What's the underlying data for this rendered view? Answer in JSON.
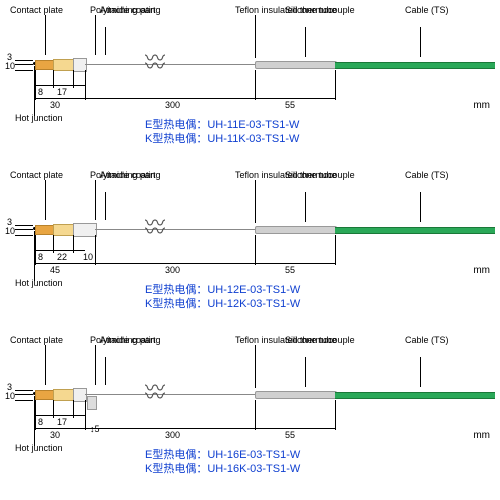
{
  "labels": {
    "contact_plate": "Contact plate",
    "polyimide": "Polyimide coating",
    "attaching": "Attaching part",
    "teflon": "Teflon insulated thermocouple",
    "silicone": "Silicone tube",
    "cable": "Cable (TS)",
    "hot_junction": "Hot junction",
    "unit": "mm"
  },
  "colors": {
    "contact_plate": "#e8a542",
    "polyimide": "#f5d890",
    "cable": "#2aa858",
    "model_text": "#1040d0"
  },
  "diagrams": [
    {
      "dims": {
        "v1": "3",
        "v2": "10",
        "h1": "8",
        "h2": "17",
        "h3": "30",
        "seg1": "300",
        "seg2": "55",
        "extra": null
      },
      "model_e": "E型热电偶：UH-11E-03-TS1-W",
      "model_k": "K型热电偶：UH-11K-03-TS1-W",
      "attach_w": 12
    },
    {
      "dims": {
        "v1": "3",
        "v2": "10",
        "h1": "8",
        "h2": "22",
        "h3": "45",
        "h4": "10",
        "seg1": "300",
        "seg2": "55",
        "extra": null
      },
      "model_e": "E型热电偶：UH-12E-03-TS1-W",
      "model_k": "K型热电偶：UH-12K-03-TS1-W",
      "attach_w": 22
    },
    {
      "dims": {
        "v1": "3",
        "v2": "10",
        "h1": "8",
        "h2": "17",
        "h3": "30",
        "seg1": "300",
        "seg2": "55",
        "extra": "5"
      },
      "model_e": "E型热电偶：UH-16E-03-TS1-W",
      "model_k": "K型热电偶：UH-16K-03-TS1-W",
      "attach_w": 12
    }
  ]
}
